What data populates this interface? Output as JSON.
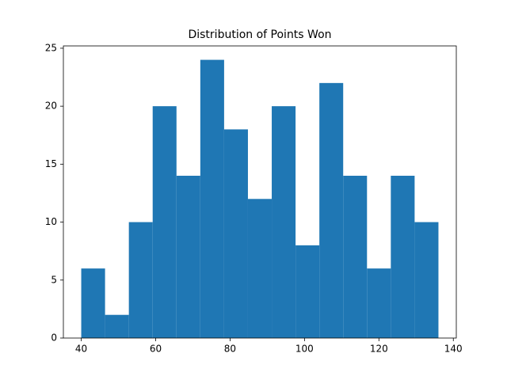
{
  "chart_data": {
    "type": "histogram",
    "title": "Distribution of Points Won",
    "bins": [
      40,
      46.4,
      52.8,
      59.2,
      65.6,
      72,
      78.4,
      84.8,
      91.2,
      97.6,
      104,
      110.4,
      116.8,
      123.2,
      129.6,
      136
    ],
    "counts": [
      6,
      2,
      10,
      20,
      14,
      24,
      18,
      12,
      20,
      8,
      22,
      14,
      6,
      14,
      10
    ],
    "color": "#1f77b4",
    "xlim": [
      35.2,
      140.8
    ],
    "xticks": [
      40,
      60,
      80,
      100,
      120,
      140
    ],
    "ylim": [
      0,
      25.2
    ],
    "yticks": [
      0,
      5,
      10,
      15,
      20,
      25
    ]
  }
}
